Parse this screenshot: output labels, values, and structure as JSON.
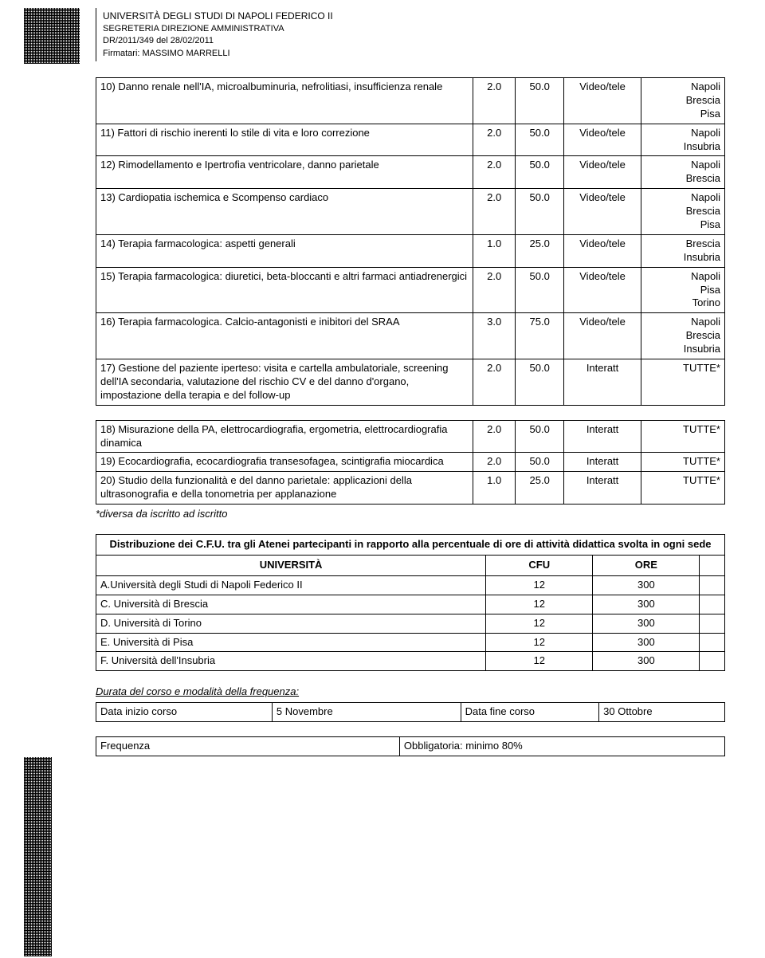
{
  "header": {
    "line1": "UNIVERSITÀ DEGLI STUDI DI NAPOLI FEDERICO II",
    "line2": "SEGRETERIA DIREZIONE AMMINISTRATIVA",
    "line3": "DR/2011/349 del 28/02/2011",
    "line4": "Firmatari: MASSIMO MARRELLI"
  },
  "t1": {
    "rows": [
      {
        "desc": "10) Danno renale nell'IA, microalbuminuria, nefrolitiasi, insufficienza renale",
        "v1": "2.0",
        "v2": "50.0",
        "type": "Video/tele",
        "loc": "Napoli\nBrescia\nPisa"
      },
      {
        "desc": "11) Fattori di rischio inerenti lo stile di vita e loro correzione",
        "v1": "2.0",
        "v2": "50.0",
        "type": "Video/tele",
        "loc": "Napoli\nInsubria"
      },
      {
        "desc": "12) Rimodellamento e Ipertrofia ventricolare, danno parietale",
        "v1": "2.0",
        "v2": "50.0",
        "type": "Video/tele",
        "loc": "Napoli\nBrescia"
      },
      {
        "desc": "13) Cardiopatia ischemica e Scompenso cardiaco",
        "v1": "2.0",
        "v2": "50.0",
        "type": "Video/tele",
        "loc": "Napoli\nBrescia\nPisa"
      },
      {
        "desc": "14) Terapia farmacologica: aspetti generali",
        "v1": "1.0",
        "v2": "25.0",
        "type": "Video/tele",
        "loc": "Brescia\nInsubria"
      },
      {
        "desc": "15) Terapia farmacologica: diuretici, beta-bloccanti e altri farmaci antiadrenergici",
        "v1": "2.0",
        "v2": "50.0",
        "type": "Video/tele",
        "loc": "Napoli\nPisa\nTorino"
      },
      {
        "desc": "16) Terapia farmacologica. Calcio-antagonisti e inibitori del SRAA",
        "v1": "3.0",
        "v2": "75.0",
        "type": "Video/tele",
        "loc": "Napoli\nBrescia\nInsubria"
      },
      {
        "desc": "17) Gestione del paziente iperteso: visita e cartella ambulatoriale, screening dell'IA secondaria, valutazione del rischio CV e del danno d'organo, impostazione della terapia e del follow-up",
        "v1": "2.0",
        "v2": "50.0",
        "type": "Interatt",
        "loc": "TUTTE*"
      }
    ]
  },
  "t2": {
    "rows": [
      {
        "desc": "18) Misurazione della PA, elettrocardiografia, ergometria, elettrocardiografia dinamica",
        "v1": "2.0",
        "v2": "50.0",
        "type": "Interatt",
        "loc": "TUTTE*"
      },
      {
        "desc": "19) Ecocardiografia, ecocardiografia transesofagea, scintigrafia miocardica",
        "v1": "2.0",
        "v2": "50.0",
        "type": "Interatt",
        "loc": "TUTTE*"
      },
      {
        "desc": "20) Studio della funzionalità e del danno parietale: applicazioni della ultrasonografia e della tonometria per applanazione",
        "v1": "1.0",
        "v2": "25.0",
        "type": "Interatt",
        "loc": "TUTTE*"
      }
    ]
  },
  "note": "*diversa da iscritto ad iscritto",
  "t3": {
    "title": "Distribuzione dei C.F.U. tra gli Atenei partecipanti in rapporto alla percentuale di ore di attività didattica svolta in ogni sede",
    "h_uni": "UNIVERSITÀ",
    "h_cfu": "CFU",
    "h_ore": "ORE",
    "rows": [
      {
        "uni": "A.Università degli Studi di Napoli Federico II",
        "cfu": "12",
        "ore": "300"
      },
      {
        "uni": "C. Università di Brescia",
        "cfu": "12",
        "ore": "300"
      },
      {
        "uni": "D. Università di Torino",
        "cfu": "12",
        "ore": "300"
      },
      {
        "uni": "E. Università di Pisa",
        "cfu": "12",
        "ore": "300"
      },
      {
        "uni": "F. Università dell'Insubria",
        "cfu": "12",
        "ore": "300"
      }
    ]
  },
  "durata_label": "Durata del corso e modalità della frequenza:",
  "t4": {
    "r1": {
      "c1": "Data inizio corso",
      "c2": "5 Novembre",
      "c3": "Data fine corso",
      "c4": "30 Ottobre"
    },
    "r2": {
      "c1": "Frequenza",
      "c2": "Obbligatoria: minimo 80%"
    }
  }
}
